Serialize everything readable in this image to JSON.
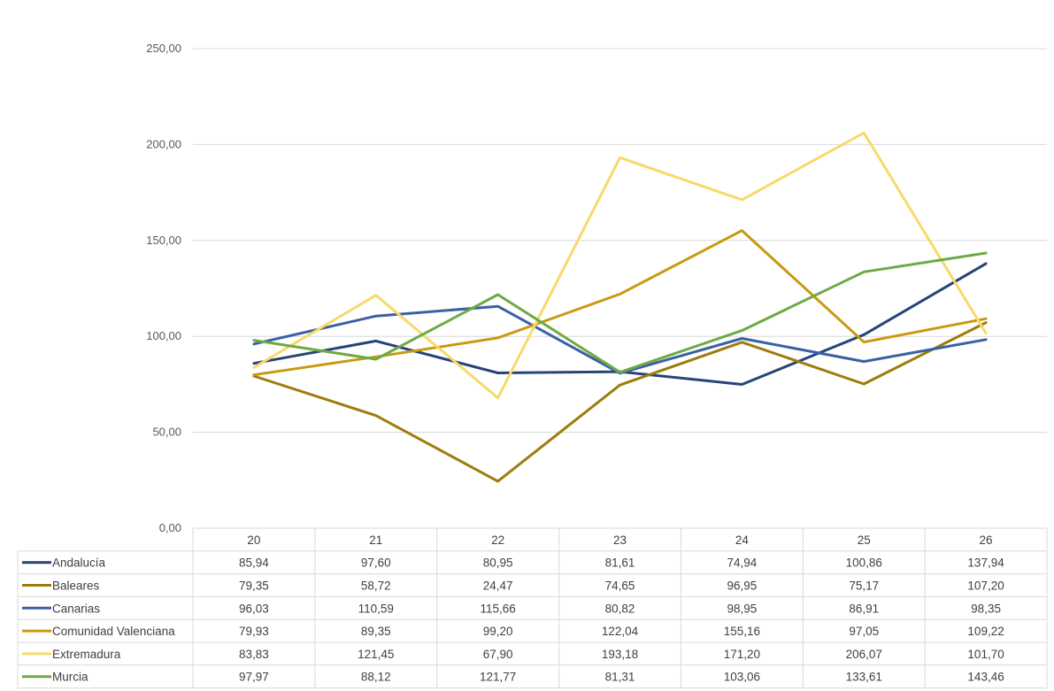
{
  "chart_data": {
    "type": "line",
    "title": "",
    "xlabel": "",
    "ylabel": "",
    "ylim": [
      0,
      250
    ],
    "y_ticks": [
      "0,00",
      "50,00",
      "100,00",
      "150,00",
      "200,00",
      "250,00"
    ],
    "grid": "horizontal",
    "legend": "data-table-below",
    "categories": [
      "20",
      "21",
      "22",
      "23",
      "24",
      "25",
      "26"
    ],
    "series": [
      {
        "name": "Andalucía",
        "color": "#264478",
        "values": [
          85.94,
          97.6,
          80.95,
          81.61,
          74.94,
          100.86,
          137.94
        ],
        "labels": [
          "85,94",
          "97,60",
          "80,95",
          "81,61",
          "74,94",
          "100,86",
          "137,94"
        ]
      },
      {
        "name": "Baleares",
        "color": "#9E7C0C",
        "values": [
          79.35,
          58.72,
          24.47,
          74.65,
          96.95,
          75.17,
          107.2
        ],
        "labels": [
          "79,35",
          "58,72",
          "24,47",
          "74,65",
          "96,95",
          "75,17",
          "107,20"
        ]
      },
      {
        "name": "Canarias",
        "color": "#3C5FA6",
        "values": [
          96.03,
          110.59,
          115.66,
          80.82,
          98.95,
          86.91,
          98.35
        ],
        "labels": [
          "96,03",
          "110,59",
          "115,66",
          "80,82",
          "98,95",
          "86,91",
          "98,35"
        ]
      },
      {
        "name": "Comunidad Valenciana",
        "color": "#C89A10",
        "values": [
          79.93,
          89.35,
          99.2,
          122.04,
          155.16,
          97.05,
          109.22
        ],
        "labels": [
          "79,93",
          "89,35",
          "99,20",
          "122,04",
          "155,16",
          "97,05",
          "109,22"
        ]
      },
      {
        "name": "Extremadura",
        "color": "#F8D96A",
        "values": [
          83.83,
          121.45,
          67.9,
          193.18,
          171.2,
          206.07,
          101.7
        ],
        "labels": [
          "83,83",
          "121,45",
          "67,90",
          "193,18",
          "171,20",
          "206,07",
          "101,70"
        ]
      },
      {
        "name": "Murcia",
        "color": "#6DAA45",
        "values": [
          97.97,
          88.12,
          121.77,
          81.31,
          103.06,
          133.61,
          143.46
        ],
        "labels": [
          "97,97",
          "88,12",
          "121,77",
          "81,31",
          "103,06",
          "133,61",
          "143,46"
        ]
      }
    ]
  }
}
